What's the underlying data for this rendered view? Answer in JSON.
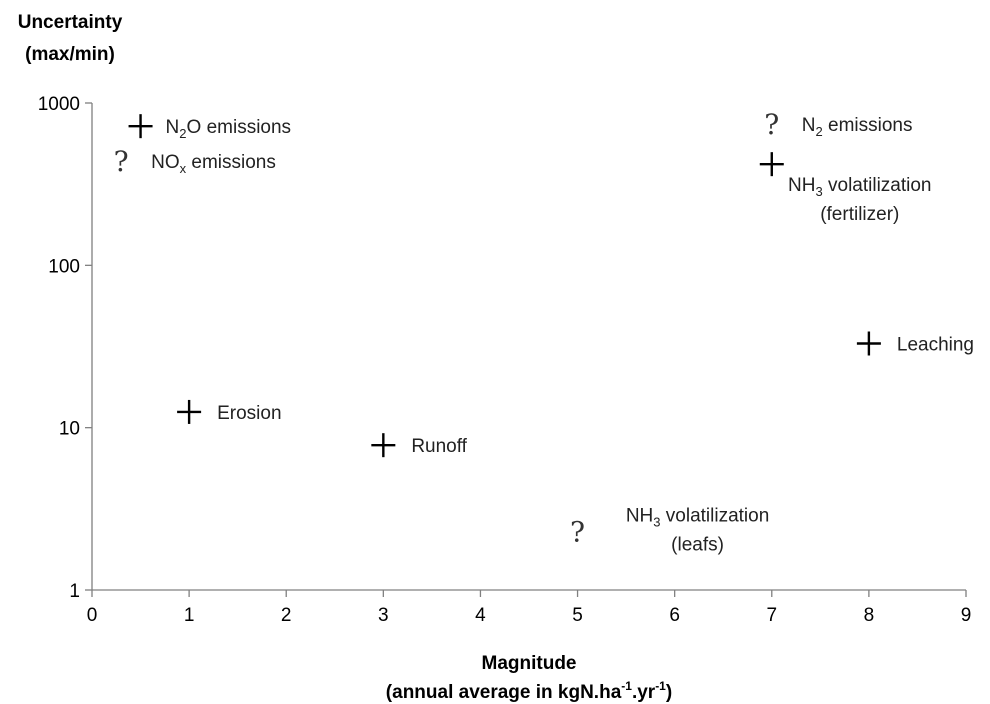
{
  "chart_data": {
    "type": "scatter",
    "ytitle_lines": [
      "Uncertainty",
      "(max/min)"
    ],
    "xtitle_line1": "Magnitude",
    "xtitle_line2": {
      "pre": "(annual average in kgN.ha",
      "sup1": "-1",
      "mid": ".yr",
      "sup2": "-1",
      "post": ")"
    },
    "xlim": [
      0,
      9
    ],
    "ylim": [
      1,
      1000
    ],
    "yscale": "log",
    "x_ticks": [
      "0",
      "1",
      "2",
      "3",
      "4",
      "5",
      "6",
      "7",
      "8",
      "9"
    ],
    "y_ticks": [
      "1",
      "10",
      "100",
      "1000"
    ],
    "grid": false,
    "markers": {
      "known": "cross",
      "unknown": "question-mark"
    },
    "points": [
      {
        "x": 0.5,
        "y": 720,
        "marker": "cross",
        "label_lines": [
          {
            "pre": "N",
            "sub": "2",
            "post": "O emissions"
          }
        ]
      },
      {
        "x": 0.3,
        "y": 440,
        "marker": "question",
        "label_lines": [
          {
            "pre": "NO",
            "sub": "x",
            "post": " emissions"
          }
        ]
      },
      {
        "x": 7.0,
        "y": 740,
        "marker": "question",
        "label_lines": [
          {
            "pre": "N",
            "sub": "2",
            "post": " emissions"
          }
        ]
      },
      {
        "x": 7.0,
        "y": 420,
        "marker": "cross",
        "label_lines": [
          {
            "pre": "NH",
            "sub": "3",
            "post": " volatilization"
          },
          {
            "pre": "(fertilizer)"
          }
        ]
      },
      {
        "x": 8.0,
        "y": 33,
        "marker": "cross",
        "label_lines": [
          {
            "pre": "Leaching"
          }
        ]
      },
      {
        "x": 1.0,
        "y": 12.5,
        "marker": "cross",
        "label_lines": [
          {
            "pre": "Erosion"
          }
        ]
      },
      {
        "x": 3.0,
        "y": 7.8,
        "marker": "cross",
        "label_lines": [
          {
            "pre": "Runoff"
          }
        ]
      },
      {
        "x": 5.0,
        "y": 2.3,
        "marker": "question",
        "label_lines": [
          {
            "pre": "NH",
            "sub": "3",
            "post": " volatilization"
          },
          {
            "pre": "(leafs)"
          }
        ]
      }
    ]
  }
}
